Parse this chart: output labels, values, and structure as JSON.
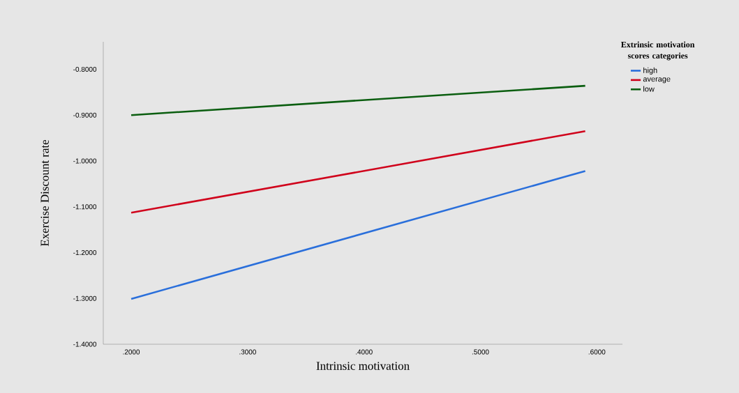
{
  "chart_data": {
    "type": "line",
    "xlabel": "Intrinsic motivation",
    "ylabel": "Exercise Discount rate",
    "legend_title": "Extrinsic motivation scores categories",
    "x": [
      0.2,
      0.59
    ],
    "series": [
      {
        "name": "high",
        "color": "#2a6fdb",
        "values": [
          -1.301,
          -1.022
        ]
      },
      {
        "name": "average",
        "color": "#d0021b",
        "values": [
          -1.113,
          -0.935
        ]
      },
      {
        "name": "low",
        "color": "#0b5e10",
        "values": [
          -0.9,
          -0.836
        ]
      }
    ],
    "xlim": [
      0.176,
      0.622
    ],
    "ylim": [
      -1.4,
      -0.74
    ],
    "xticks": [
      {
        "value": 0.2,
        "label": ".2000"
      },
      {
        "value": 0.3,
        "label": ".3000"
      },
      {
        "value": 0.4,
        "label": ".4000"
      },
      {
        "value": 0.5,
        "label": ".5000"
      },
      {
        "value": 0.6,
        "label": ".6000"
      }
    ],
    "yticks": [
      {
        "value": -1.4,
        "label": "-1.4000"
      },
      {
        "value": -1.3,
        "label": "-1.3000"
      },
      {
        "value": -1.2,
        "label": "-1.2000"
      },
      {
        "value": -1.1,
        "label": "-1.1000"
      },
      {
        "value": -1.0,
        "label": "-1.0000"
      },
      {
        "value": -0.9,
        "label": "-0.9000"
      },
      {
        "value": -0.8,
        "label": "-0.8000"
      }
    ],
    "grid": false,
    "legend": "top right",
    "marker": "none",
    "line_style": "solid"
  }
}
